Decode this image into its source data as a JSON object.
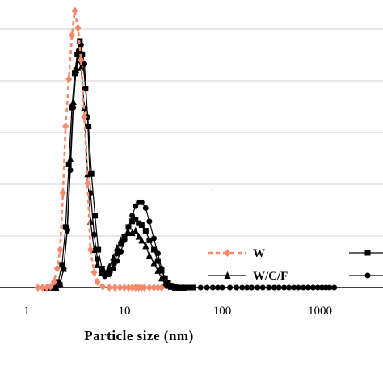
{
  "chart_data": {
    "type": "line",
    "xscale": "log",
    "xlim": [
      0.5,
      2000
    ],
    "ylim": [
      0,
      15
    ],
    "grid": true,
    "xlabel": "Particle size (nm)",
    "ylabel": "",
    "x_ticks": [
      1,
      10,
      100,
      1000
    ],
    "x_tick_labels": [
      "1",
      "10",
      "100",
      "1000"
    ],
    "legend_placement": "bottom-right",
    "series": [
      {
        "name": "W",
        "marker": "diamond",
        "line": "dashed",
        "color": "#f4896b",
        "x": [
          1.3,
          1.45,
          1.6,
          1.75,
          1.9,
          2.05,
          2.2,
          2.35,
          2.5,
          2.7,
          2.9,
          3.1,
          3.35,
          3.6,
          3.9,
          4.2,
          4.5,
          4.9,
          5.3,
          6.0,
          7.0,
          8.0,
          9.0,
          10.0,
          11.0,
          12.0,
          13.0,
          14.0,
          15.0,
          16.0,
          18.0,
          20.0,
          22.0,
          24.0
        ],
        "y": [
          0,
          0,
          0,
          0.05,
          0.3,
          1.0,
          2.0,
          5.0,
          8.5,
          11.0,
          13.3,
          14.6,
          13.7,
          12.0,
          9.0,
          5.5,
          2.0,
          0.8,
          0.3,
          0.05,
          0,
          0,
          0,
          0,
          0,
          0,
          0,
          0,
          0,
          0,
          0,
          0,
          0,
          0
        ]
      },
      {
        "name": "W/C/F",
        "marker": "triangle",
        "line": "solid",
        "color": "#000000",
        "x": [
          1.6,
          1.8,
          2.0,
          2.2,
          2.4,
          2.6,
          2.8,
          3.0,
          3.2,
          3.4,
          3.6,
          3.9,
          4.2,
          4.5,
          4.9,
          5.3,
          5.8,
          6.3,
          7.0,
          7.7,
          8.4,
          9.2,
          10.0,
          11.0,
          12.0,
          13.0,
          14.0,
          15.0,
          16.5,
          18.0,
          20.0,
          22.0,
          24.0,
          26.0,
          28.0,
          30.0,
          33.0,
          36.0,
          40.0
        ],
        "y": [
          0,
          0,
          0,
          0.2,
          1.0,
          3.2,
          6.8,
          9.8,
          11.5,
          12.0,
          11.6,
          9.5,
          6.0,
          3.5,
          2.0,
          1.2,
          0.8,
          0.8,
          1.1,
          1.6,
          2.1,
          2.5,
          2.7,
          2.9,
          2.9,
          3.0,
          2.7,
          2.5,
          2.2,
          1.7,
          1.3,
          0.9,
          0.5,
          0.2,
          0.1,
          0.05,
          0,
          0,
          0
        ]
      },
      {
        "name": "",
        "marker": "square",
        "line": "solid",
        "color": "#000000",
        "x": [
          1.7,
          1.9,
          2.1,
          2.3,
          2.5,
          2.7,
          2.9,
          3.1,
          3.3,
          3.5,
          3.7,
          4.0,
          4.3,
          4.6,
          5.0,
          5.4,
          5.9,
          6.5,
          7.1,
          7.8,
          8.5,
          9.3,
          10.0,
          11.0,
          12.0,
          13.0,
          14.0,
          15.0,
          16.5,
          18.0,
          20.0,
          22.0,
          24.0,
          26.0,
          28.0,
          30.0,
          33.0,
          36.0,
          40.0,
          45.0,
          50.0
        ],
        "y": [
          0,
          0,
          0.3,
          1.2,
          3.2,
          6.5,
          9.5,
          11.3,
          12.3,
          13.0,
          12.3,
          10.5,
          8.5,
          6.0,
          3.8,
          2.0,
          1.0,
          0.7,
          0.9,
          1.3,
          1.8,
          2.3,
          2.7,
          3.2,
          3.5,
          3.6,
          3.4,
          3.3,
          3.0,
          2.5,
          2.0,
          1.4,
          0.9,
          0.5,
          0.25,
          0.1,
          0.05,
          0,
          0,
          0,
          0
        ]
      },
      {
        "name": "",
        "marker": "circle",
        "line": "solid",
        "color": "#000000",
        "x": [
          1.8,
          2.0,
          2.2,
          2.4,
          2.6,
          2.8,
          3.0,
          3.2,
          3.4,
          3.6,
          3.9,
          4.2,
          4.5,
          4.9,
          5.3,
          5.8,
          6.3,
          7.0,
          7.7,
          8.4,
          9.2,
          10.0,
          11.0,
          12.0,
          13.0,
          14.0,
          15.0,
          16.5,
          18.0,
          20.0,
          22.0,
          24.0,
          26.0,
          28.0,
          30.0,
          33.0,
          36.0,
          40.0,
          45.0
        ],
        "y": [
          0,
          0,
          0.2,
          1.0,
          3.0,
          6.2,
          9.5,
          11.5,
          12.5,
          12.8,
          11.8,
          9.0,
          5.0,
          2.8,
          1.5,
          0.8,
          0.6,
          0.7,
          1.0,
          1.4,
          1.9,
          2.5,
          3.2,
          3.8,
          4.3,
          4.5,
          4.5,
          4.2,
          3.5,
          2.6,
          1.8,
          1.0,
          0.5,
          0.2,
          0.1,
          0,
          0,
          0,
          0
        ]
      },
      {
        "name": "",
        "marker": "circle",
        "line": "solid",
        "color": "#000000",
        "x": [
          40,
          50,
          60,
          70,
          80,
          90,
          100,
          120,
          140,
          160,
          180,
          200,
          230,
          260,
          300,
          340,
          380,
          430,
          480,
          540,
          600,
          680,
          760,
          850,
          950,
          1050,
          1150,
          1250,
          1400
        ],
        "y": [
          0,
          0,
          0,
          0,
          0,
          0,
          0,
          0,
          0,
          0,
          0,
          0,
          0,
          0,
          0,
          0,
          0,
          0,
          0,
          0,
          0,
          0,
          0,
          0,
          0,
          0,
          0,
          0,
          0
        ]
      }
    ]
  }
}
